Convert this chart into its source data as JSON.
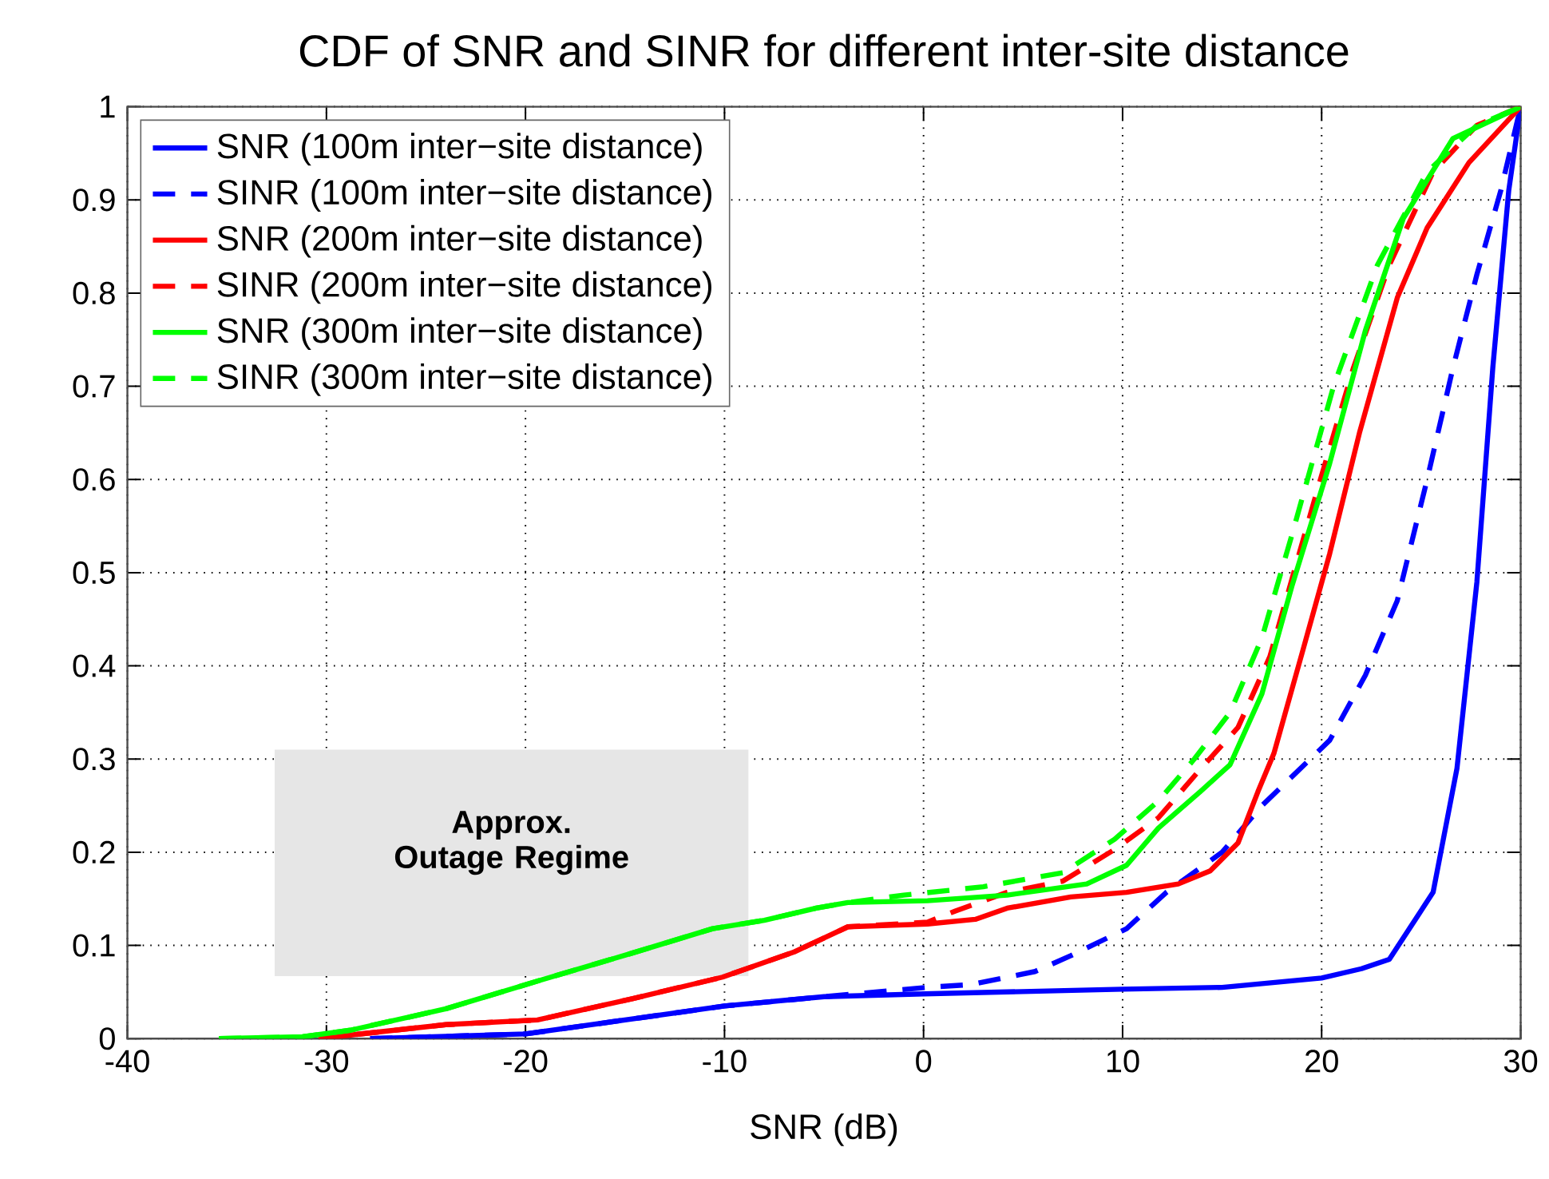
{
  "chart_data": {
    "type": "line",
    "title": "CDF of SNR and SINR for different inter-site distance",
    "xlabel": "SNR (dB)",
    "xlim": [
      -40,
      30
    ],
    "ylim": [
      0,
      1
    ],
    "xticks": [
      -40,
      -30,
      -20,
      -10,
      0,
      10,
      20,
      30
    ],
    "yticks": [
      0,
      0.1,
      0.2,
      0.3,
      0.4,
      0.5,
      0.6,
      0.7,
      0.8,
      0.9,
      1
    ],
    "grid": true,
    "legend": "top left",
    "bands": [
      {
        "axis": "x",
        "from": -32.6,
        "to": -8.8,
        "label": "Approx. Outage Regime",
        "color": "#e6e6e6"
      }
    ],
    "series": [
      {
        "name": "SNR (100m inter−site distance)",
        "color": "#0000ff",
        "line_style": "solid",
        "x": [
          -27.8,
          -20,
          -10,
          -5,
          0,
          10,
          15,
          20,
          22,
          23.4,
          25.6,
          26.8,
          27.8,
          28.6,
          29.4,
          30
        ],
        "values": [
          0,
          0.005,
          0.035,
          0.045,
          0.048,
          0.053,
          0.055,
          0.065,
          0.075,
          0.085,
          0.157,
          0.29,
          0.49,
          0.72,
          0.91,
          1
        ]
      },
      {
        "name": "SINR (100m inter−site distance)",
        "color": "#0000ff",
        "line_style": "dashed",
        "x": [
          -27.8,
          -20,
          -10,
          -5,
          0.2,
          2.4,
          5.6,
          7.4,
          10.2,
          12.2,
          15,
          17,
          20.4,
          22.2,
          23.8,
          25.3,
          26.6,
          27.8,
          29,
          30
        ],
        "values": [
          0,
          0.005,
          0.035,
          0.045,
          0.055,
          0.058,
          0.072,
          0.089,
          0.118,
          0.157,
          0.2,
          0.25,
          0.32,
          0.39,
          0.47,
          0.6,
          0.72,
          0.82,
          0.91,
          1
        ]
      },
      {
        "name": "SNR (200m inter−site distance)",
        "color": "#ff0000",
        "line_style": "solid",
        "x": [
          -30.4,
          -24,
          -19.4,
          -14.6,
          -10.1,
          -6.5,
          -3.8,
          0.2,
          2.6,
          4.2,
          7.4,
          10.2,
          12.8,
          14.4,
          15.8,
          16.8,
          17.6,
          19.1,
          20.4,
          21.9,
          23.8,
          25.3,
          27.4,
          30
        ],
        "values": [
          0,
          0.015,
          0.02,
          0.043,
          0.066,
          0.093,
          0.12,
          0.123,
          0.128,
          0.14,
          0.152,
          0.157,
          0.166,
          0.18,
          0.21,
          0.265,
          0.306,
          0.42,
          0.52,
          0.65,
          0.795,
          0.87,
          0.94,
          1
        ]
      },
      {
        "name": "SINR (200m inter−site distance)",
        "color": "#ff0000",
        "line_style": "dashed",
        "x": [
          -30.4,
          -24,
          -19.4,
          -14.6,
          -10.1,
          -6.5,
          -3.8,
          0.2,
          1.6,
          4.2,
          7,
          9.6,
          11.8,
          13.9,
          15.8,
          17.4,
          19.8,
          21.6,
          23.4,
          25.6,
          27.8,
          30
        ],
        "values": [
          0,
          0.015,
          0.02,
          0.043,
          0.066,
          0.093,
          0.12,
          0.125,
          0.137,
          0.157,
          0.169,
          0.203,
          0.237,
          0.289,
          0.334,
          0.41,
          0.59,
          0.72,
          0.83,
          0.93,
          0.98,
          1
        ]
      },
      {
        "name": "SNR (300m inter−site distance)",
        "color": "#00ff00",
        "line_style": "solid",
        "x": [
          -35.4,
          -31.2,
          -28.8,
          -24,
          -19.2,
          -14.6,
          -10.6,
          -8,
          -5.4,
          -3.8,
          0.2,
          4.2,
          8.2,
          10.2,
          11.8,
          13.9,
          15.4,
          17,
          18.5,
          20.4,
          22.2,
          24.1,
          26.6,
          30
        ],
        "values": [
          0,
          0.002,
          0.009,
          0.032,
          0.063,
          0.092,
          0.118,
          0.127,
          0.14,
          0.146,
          0.148,
          0.154,
          0.166,
          0.186,
          0.226,
          0.265,
          0.294,
          0.37,
          0.485,
          0.617,
          0.76,
          0.88,
          0.966,
          1
        ]
      },
      {
        "name": "SINR (300m inter−site distance)",
        "color": "#00ff00",
        "line_style": "dashed",
        "x": [
          -35.4,
          -31.2,
          -28.8,
          -24,
          -19.2,
          -14.6,
          -10.6,
          -8,
          -5.4,
          -3.8,
          -1,
          3,
          7,
          9.6,
          11.8,
          13.6,
          15.4,
          17,
          18.5,
          20.6,
          22.8,
          25.3,
          27.8,
          30
        ],
        "values": [
          0,
          0.002,
          0.009,
          0.032,
          0.063,
          0.092,
          0.118,
          0.127,
          0.14,
          0.146,
          0.154,
          0.163,
          0.178,
          0.214,
          0.255,
          0.3,
          0.35,
          0.43,
          0.54,
          0.7,
          0.83,
          0.93,
          0.98,
          1
        ]
      }
    ]
  }
}
